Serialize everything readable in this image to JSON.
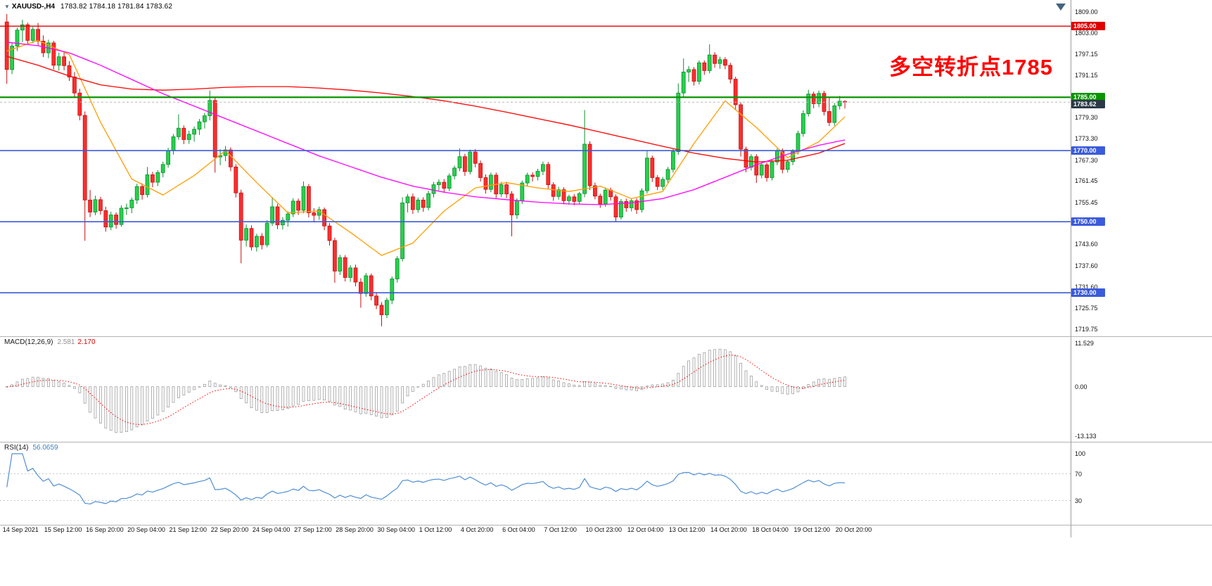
{
  "window": {
    "background": "#ffffff"
  },
  "header": {
    "collapse_icon": "▼",
    "symbol_title": "XAUUSD-,H4",
    "ohlc_text": "1783.82 1784.18 1781.84 1783.62"
  },
  "annotation": {
    "text": "多空转折点1785",
    "color": "#ff0000"
  },
  "macd_panel": {
    "label": "MACD(12,26,9)",
    "main_value": "2.581",
    "signal_value": "2.170"
  },
  "rsi_panel": {
    "label": "RSI(14)",
    "value": "56.0659"
  },
  "chart_data": {
    "type": "candlestick",
    "symbol": "XAUUSD-",
    "timeframe": "H4",
    "last_candle": {
      "open": 1783.82,
      "high": 1784.18,
      "low": 1781.84,
      "close": 1783.62
    },
    "price_axis": {
      "min": 1719.75,
      "max": 1809.0,
      "labels": [
        1809.0,
        1803.0,
        1797.15,
        1791.15,
        1779.3,
        1773.3,
        1767.3,
        1761.45,
        1755.45,
        1743.6,
        1737.6,
        1731.6,
        1725.75,
        1719.75
      ]
    },
    "horizontal_levels": [
      {
        "value": 1805.0,
        "color": "#e00000",
        "line_width": 1.4,
        "badge": "1805.00"
      },
      {
        "value": 1785.0,
        "color": "#0a9400",
        "line_width": 2.2,
        "badge": "1785.00"
      },
      {
        "value": 1770.0,
        "color": "#3b5bdb",
        "line_width": 1.6,
        "badge": "1770.00"
      },
      {
        "value": 1750.0,
        "color": "#3b5bdb",
        "line_width": 1.6,
        "badge": "1750.00"
      },
      {
        "value": 1730.0,
        "color": "#3b5bdb",
        "line_width": 1.6,
        "badge": "1730.00"
      }
    ],
    "current_price": {
      "value": 1783.62,
      "badge": "1783.62",
      "badge_color": "#2b3a46",
      "line_color": "#b8b8b8"
    },
    "candle_colors": {
      "up_fill": "#27d04c",
      "up_border": "#0e8f30",
      "down_fill": "#ff2d2d",
      "down_border": "#c21212"
    },
    "candles": [
      [
        1806.2,
        1808.4,
        1788.8,
        1792.8
      ],
      [
        1792.8,
        1800.2,
        1791.5,
        1799.4
      ],
      [
        1799.4,
        1804.6,
        1798.0,
        1803.9
      ],
      [
        1803.9,
        1806.8,
        1800.5,
        1805.4
      ],
      [
        1805.4,
        1806.0,
        1799.8,
        1801.0
      ],
      [
        1801.0,
        1804.8,
        1800.2,
        1804.1
      ],
      [
        1804.1,
        1805.9,
        1799.6,
        1800.8
      ],
      [
        1800.8,
        1802.4,
        1796.3,
        1797.5
      ],
      [
        1797.5,
        1801.2,
        1796.0,
        1800.3
      ],
      [
        1800.3,
        1800.9,
        1792.8,
        1794.0
      ],
      [
        1794.0,
        1797.6,
        1792.5,
        1796.4
      ],
      [
        1796.4,
        1797.8,
        1792.6,
        1793.9
      ],
      [
        1793.9,
        1795.2,
        1789.6,
        1790.7
      ],
      [
        1790.7,
        1792.1,
        1784.9,
        1786.2
      ],
      [
        1786.2,
        1787.4,
        1778.5,
        1779.9
      ],
      [
        1779.9,
        1781.0,
        1744.6,
        1756.1
      ],
      [
        1756.1,
        1758.9,
        1751.3,
        1752.7
      ],
      [
        1752.7,
        1757.3,
        1751.8,
        1756.2
      ],
      [
        1756.2,
        1757.0,
        1752.0,
        1753.1
      ],
      [
        1753.1,
        1754.2,
        1747.2,
        1748.5
      ],
      [
        1748.5,
        1752.8,
        1747.6,
        1751.9
      ],
      [
        1751.9,
        1752.6,
        1748.0,
        1749.2
      ],
      [
        1749.2,
        1754.6,
        1748.6,
        1753.8
      ],
      [
        1753.8,
        1755.1,
        1751.9,
        1753.9
      ],
      [
        1753.9,
        1756.8,
        1752.4,
        1756.1
      ],
      [
        1756.1,
        1760.7,
        1755.0,
        1759.9
      ],
      [
        1759.9,
        1760.8,
        1756.2,
        1757.6
      ],
      [
        1757.6,
        1765.4,
        1756.8,
        1763.2
      ],
      [
        1763.2,
        1764.0,
        1759.7,
        1761.1
      ],
      [
        1761.1,
        1764.5,
        1760.0,
        1763.8
      ],
      [
        1763.8,
        1766.9,
        1762.5,
        1766.1
      ],
      [
        1766.1,
        1770.8,
        1765.2,
        1770.0
      ],
      [
        1770.0,
        1774.7,
        1768.9,
        1773.9
      ],
      [
        1773.9,
        1780.2,
        1773.0,
        1776.3
      ],
      [
        1776.3,
        1777.1,
        1771.8,
        1773.1
      ],
      [
        1773.1,
        1775.6,
        1771.9,
        1774.6
      ],
      [
        1774.6,
        1776.8,
        1772.5,
        1776.0
      ],
      [
        1776.0,
        1778.9,
        1774.4,
        1778.1
      ],
      [
        1778.1,
        1780.6,
        1776.2,
        1779.8
      ],
      [
        1779.8,
        1786.9,
        1778.5,
        1784.1
      ],
      [
        1784.1,
        1785.0,
        1763.8,
        1768.2
      ],
      [
        1768.2,
        1770.4,
        1765.9,
        1768.6
      ],
      [
        1768.6,
        1771.3,
        1767.0,
        1770.2
      ],
      [
        1770.2,
        1770.9,
        1764.2,
        1765.4
      ],
      [
        1765.4,
        1766.2,
        1756.8,
        1758.1
      ],
      [
        1758.1,
        1759.0,
        1738.3,
        1744.8
      ],
      [
        1744.8,
        1749.2,
        1743.0,
        1748.1
      ],
      [
        1748.1,
        1749.0,
        1741.9,
        1742.9
      ],
      [
        1742.9,
        1746.6,
        1741.6,
        1745.9
      ],
      [
        1745.9,
        1746.8,
        1742.2,
        1743.5
      ],
      [
        1743.5,
        1750.4,
        1742.8,
        1749.6
      ],
      [
        1749.6,
        1756.9,
        1748.8,
        1754.2
      ],
      [
        1754.2,
        1755.0,
        1747.9,
        1749.1
      ],
      [
        1749.1,
        1751.3,
        1747.8,
        1750.4
      ],
      [
        1750.4,
        1752.9,
        1748.6,
        1752.2
      ],
      [
        1752.2,
        1756.6,
        1751.3,
        1755.8
      ],
      [
        1755.8,
        1756.5,
        1751.9,
        1753.2
      ],
      [
        1753.2,
        1761.3,
        1752.4,
        1759.9
      ],
      [
        1759.9,
        1760.6,
        1751.2,
        1752.5
      ],
      [
        1752.5,
        1753.8,
        1749.8,
        1751.8
      ],
      [
        1751.8,
        1754.2,
        1750.5,
        1753.4
      ],
      [
        1753.4,
        1754.0,
        1747.6,
        1748.8
      ],
      [
        1748.8,
        1749.6,
        1743.3,
        1744.7
      ],
      [
        1744.7,
        1745.5,
        1732.8,
        1736.1
      ],
      [
        1736.1,
        1740.7,
        1735.0,
        1739.9
      ],
      [
        1739.9,
        1740.6,
        1733.2,
        1734.3
      ],
      [
        1734.3,
        1737.8,
        1733.1,
        1737.0
      ],
      [
        1737.0,
        1737.9,
        1731.8,
        1733.0
      ],
      [
        1733.0,
        1734.1,
        1725.8,
        1729.8
      ],
      [
        1729.8,
        1735.6,
        1728.9,
        1734.8
      ],
      [
        1734.8,
        1735.4,
        1727.9,
        1729.1
      ],
      [
        1729.1,
        1730.2,
        1725.4,
        1726.5
      ],
      [
        1726.5,
        1727.4,
        1720.6,
        1723.8
      ],
      [
        1723.8,
        1728.6,
        1722.9,
        1727.9
      ],
      [
        1727.9,
        1734.6,
        1726.8,
        1733.9
      ],
      [
        1733.9,
        1740.3,
        1732.9,
        1739.6
      ],
      [
        1739.6,
        1756.9,
        1738.8,
        1755.3
      ],
      [
        1755.3,
        1757.8,
        1752.6,
        1757.0
      ],
      [
        1757.0,
        1757.9,
        1752.2,
        1753.4
      ],
      [
        1753.4,
        1756.8,
        1752.5,
        1756.1
      ],
      [
        1756.1,
        1756.9,
        1752.8,
        1754.0
      ],
      [
        1754.0,
        1758.7,
        1753.2,
        1757.9
      ],
      [
        1757.9,
        1761.2,
        1756.8,
        1760.4
      ],
      [
        1760.4,
        1761.9,
        1758.8,
        1761.1
      ],
      [
        1761.1,
        1762.0,
        1758.3,
        1759.4
      ],
      [
        1759.4,
        1763.6,
        1758.6,
        1762.9
      ],
      [
        1762.9,
        1765.8,
        1761.9,
        1765.1
      ],
      [
        1765.1,
        1770.6,
        1764.2,
        1768.3
      ],
      [
        1768.3,
        1769.1,
        1762.9,
        1764.1
      ],
      [
        1764.1,
        1770.3,
        1763.3,
        1769.6
      ],
      [
        1769.6,
        1770.4,
        1765.3,
        1766.4
      ],
      [
        1766.4,
        1767.2,
        1761.3,
        1762.4
      ],
      [
        1762.4,
        1763.3,
        1757.9,
        1759.1
      ],
      [
        1759.1,
        1763.8,
        1758.3,
        1763.1
      ],
      [
        1763.1,
        1763.8,
        1756.6,
        1757.8
      ],
      [
        1757.8,
        1761.2,
        1756.9,
        1760.4
      ],
      [
        1760.4,
        1761.2,
        1756.6,
        1757.8
      ],
      [
        1757.8,
        1758.6,
        1745.9,
        1751.9
      ],
      [
        1751.9,
        1756.6,
        1750.8,
        1755.9
      ],
      [
        1755.9,
        1761.6,
        1755.0,
        1760.9
      ],
      [
        1760.9,
        1763.8,
        1759.9,
        1763.1
      ],
      [
        1763.1,
        1763.9,
        1761.3,
        1762.7
      ],
      [
        1762.7,
        1764.9,
        1761.6,
        1764.2
      ],
      [
        1764.2,
        1766.9,
        1763.1,
        1766.1
      ],
      [
        1766.1,
        1766.8,
        1759.3,
        1760.4
      ],
      [
        1760.4,
        1761.1,
        1755.9,
        1757.1
      ],
      [
        1757.1,
        1759.8,
        1756.2,
        1759.0
      ],
      [
        1759.0,
        1759.7,
        1754.9,
        1755.9
      ],
      [
        1755.9,
        1757.6,
        1754.8,
        1757.0
      ],
      [
        1757.0,
        1757.8,
        1754.6,
        1755.7
      ],
      [
        1755.7,
        1758.4,
        1754.9,
        1757.9
      ],
      [
        1757.9,
        1781.4,
        1756.9,
        1771.8
      ],
      [
        1771.8,
        1772.6,
        1758.9,
        1760.1
      ],
      [
        1760.1,
        1761.0,
        1756.3,
        1757.2
      ],
      [
        1757.2,
        1757.9,
        1753.9,
        1755.0
      ],
      [
        1755.0,
        1759.6,
        1754.2,
        1758.9
      ],
      [
        1758.9,
        1759.6,
        1755.9,
        1757.0
      ],
      [
        1757.0,
        1757.7,
        1749.9,
        1751.3
      ],
      [
        1751.3,
        1756.4,
        1750.6,
        1755.7
      ],
      [
        1755.7,
        1756.5,
        1752.8,
        1753.9
      ],
      [
        1753.9,
        1756.6,
        1752.9,
        1755.9
      ],
      [
        1755.9,
        1756.6,
        1752.2,
        1753.4
      ],
      [
        1753.4,
        1759.4,
        1752.6,
        1758.7
      ],
      [
        1758.7,
        1770.1,
        1757.9,
        1767.9
      ],
      [
        1767.9,
        1768.6,
        1761.2,
        1762.4
      ],
      [
        1762.4,
        1763.1,
        1758.9,
        1759.9
      ],
      [
        1759.9,
        1762.6,
        1758.9,
        1761.9
      ],
      [
        1761.9,
        1765.4,
        1760.9,
        1764.7
      ],
      [
        1764.7,
        1770.4,
        1763.8,
        1769.7
      ],
      [
        1769.7,
        1788.9,
        1768.8,
        1786.2
      ],
      [
        1786.2,
        1795.9,
        1784.9,
        1792.1
      ],
      [
        1792.1,
        1793.8,
        1789.3,
        1792.8
      ],
      [
        1792.8,
        1793.5,
        1788.3,
        1789.5
      ],
      [
        1789.5,
        1795.4,
        1788.6,
        1794.7
      ],
      [
        1794.7,
        1795.4,
        1791.3,
        1792.5
      ],
      [
        1792.5,
        1799.9,
        1791.7,
        1796.9
      ],
      [
        1796.9,
        1797.7,
        1793.3,
        1794.5
      ],
      [
        1794.5,
        1796.4,
        1793.0,
        1795.6
      ],
      [
        1795.6,
        1796.3,
        1792.9,
        1794.0
      ],
      [
        1794.0,
        1794.7,
        1788.9,
        1790.1
      ],
      [
        1790.1,
        1790.8,
        1781.6,
        1782.9
      ],
      [
        1782.9,
        1783.6,
        1768.3,
        1770.4
      ],
      [
        1770.4,
        1771.1,
        1763.9,
        1765.3
      ],
      [
        1765.3,
        1769.0,
        1764.4,
        1768.3
      ],
      [
        1768.3,
        1769.0,
        1760.9,
        1763.1
      ],
      [
        1763.1,
        1766.7,
        1762.2,
        1766.0
      ],
      [
        1766.0,
        1766.7,
        1761.3,
        1762.4
      ],
      [
        1762.4,
        1767.4,
        1761.6,
        1766.8
      ],
      [
        1766.8,
        1770.6,
        1765.9,
        1769.9
      ],
      [
        1769.9,
        1770.6,
        1763.6,
        1764.7
      ],
      [
        1764.7,
        1767.5,
        1763.8,
        1766.9
      ],
      [
        1766.9,
        1770.4,
        1765.9,
        1769.8
      ],
      [
        1769.8,
        1775.6,
        1768.9,
        1774.8
      ],
      [
        1774.8,
        1781.3,
        1773.9,
        1780.4
      ],
      [
        1780.4,
        1787.1,
        1779.6,
        1785.9
      ],
      [
        1785.9,
        1786.6,
        1781.9,
        1783.2
      ],
      [
        1783.2,
        1786.9,
        1782.2,
        1786.1
      ],
      [
        1786.1,
        1786.8,
        1779.9,
        1781.0
      ],
      [
        1781.0,
        1784.9,
        1776.9,
        1777.9
      ],
      [
        1777.9,
        1783.4,
        1777.0,
        1782.6
      ],
      [
        1782.6,
        1785.4,
        1781.6,
        1783.9
      ],
      [
        1783.82,
        1784.18,
        1781.84,
        1783.62
      ]
    ],
    "moving_averages": [
      {
        "name": "ma-fast-orange",
        "color": "#ff9d00",
        "sample_step": 6,
        "values": [
          1798,
          1801,
          1797,
          1778,
          1762,
          1757.5,
          1763,
          1770,
          1761,
          1752.5,
          1753,
          1747,
          1740.5,
          1744,
          1753,
          1759.5,
          1761,
          1759.5,
          1758.5,
          1760,
          1756.5,
          1758.5,
          1772,
          1784,
          1776.5,
          1768,
          1772.5,
          1779.5
        ]
      },
      {
        "name": "ma-mid-red",
        "color": "#ff0000",
        "sample_step": 6,
        "values": [
          1796.5,
          1794,
          1791,
          1788.5,
          1787.3,
          1787,
          1787.3,
          1787.8,
          1788,
          1788,
          1787.6,
          1787,
          1786.2,
          1785.2,
          1784,
          1782.5,
          1780.8,
          1779,
          1777.2,
          1775.2,
          1773.2,
          1771.2,
          1769.3,
          1767.8,
          1766.8,
          1767.3,
          1769.3,
          1772
        ]
      },
      {
        "name": "ma-slow-magenta",
        "color": "#ff00ff",
        "sample_step": 6,
        "values": [
          1800.5,
          1799.5,
          1797.5,
          1794,
          1790,
          1786,
          1782.5,
          1779,
          1775.5,
          1772,
          1768.5,
          1765.5,
          1762.5,
          1760,
          1758.3,
          1757,
          1756.2,
          1755.5,
          1755,
          1754.8,
          1755.3,
          1756.5,
          1759,
          1762.5,
          1766,
          1769,
          1771.5,
          1773
        ]
      }
    ],
    "time_axis": {
      "labels": [
        {
          "i": 0,
          "t": "14 Sep 2021"
        },
        {
          "i": 8,
          "t": "15 Sep 12:00"
        },
        {
          "i": 16,
          "t": "16 Sep 20:00"
        },
        {
          "i": 24,
          "t": "20 Sep 04:00"
        },
        {
          "i": 32,
          "t": "21 Sep 12:00"
        },
        {
          "i": 40,
          "t": "22 Sep 20:00"
        },
        {
          "i": 48,
          "t": "24 Sep 04:00"
        },
        {
          "i": 56,
          "t": "27 Sep 12:00"
        },
        {
          "i": 64,
          "t": "28 Sep 20:00"
        },
        {
          "i": 72,
          "t": "30 Sep 04:00"
        },
        {
          "i": 80,
          "t": "1 Oct 12:00"
        },
        {
          "i": 88,
          "t": "4 Oct 20:00"
        },
        {
          "i": 96,
          "t": "6 Oct 04:00"
        },
        {
          "i": 104,
          "t": "7 Oct 12:00"
        },
        {
          "i": 112,
          "t": "10 Oct 23:00"
        },
        {
          "i": 120,
          "t": "12 Oct 04:00"
        },
        {
          "i": 128,
          "t": "13 Oct 12:00"
        },
        {
          "i": 136,
          "t": "14 Oct 20:00"
        },
        {
          "i": 144,
          "t": "18 Oct 04:00"
        },
        {
          "i": 152,
          "t": "19 Oct 12:00"
        },
        {
          "i": 160,
          "t": "20 Oct 20:00"
        }
      ]
    },
    "macd": {
      "params": [
        12,
        26,
        9
      ],
      "main_value": 2.581,
      "signal_value": 2.17,
      "axis_labels": [
        "11.529",
        "0.00",
        "-13.133"
      ],
      "histogram_color": "#a0a0a0",
      "signal_color": "#ff0000"
    },
    "rsi": {
      "period": 14,
      "value": 56.0659,
      "axis_labels": [
        "100",
        "70",
        "30"
      ],
      "levels": [
        70,
        30
      ],
      "line_color": "#4f8fd4"
    }
  }
}
